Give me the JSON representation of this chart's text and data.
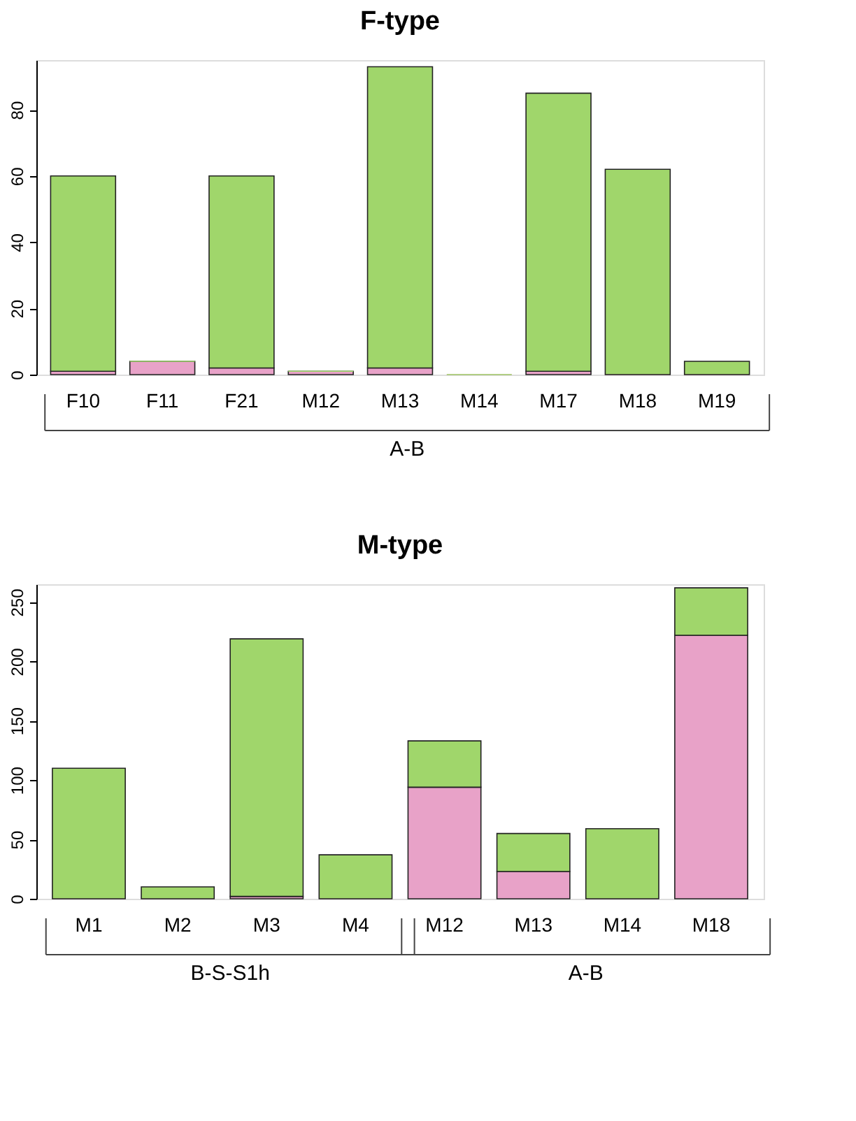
{
  "chart_data": [
    {
      "type": "bar",
      "title": "F-type",
      "stacked": true,
      "categories": [
        "F10",
        "F11",
        "F21",
        "M12",
        "M13",
        "M14",
        "M17",
        "M18",
        "M19"
      ],
      "series": [
        {
          "color": "#e8a2c8",
          "values": [
            1,
            4,
            2,
            1,
            2,
            0,
            1,
            0,
            0
          ]
        },
        {
          "color": "#a0d66b",
          "values": [
            59,
            0,
            58,
            0,
            91,
            0,
            84,
            62,
            4
          ]
        }
      ],
      "ylim": [
        0,
        95
      ],
      "yticks": [
        0,
        20,
        40,
        60,
        80
      ],
      "grid": false,
      "legend": false,
      "annotations": [
        "A-B"
      ]
    },
    {
      "type": "bar",
      "title": "M-type",
      "stacked": true,
      "categories": [
        "M1",
        "M2",
        "M3",
        "M4",
        "M12",
        "M13",
        "M14",
        "M18"
      ],
      "series": [
        {
          "color": "#e8a2c8",
          "values": [
            0,
            0,
            2,
            0,
            94,
            23,
            0,
            222
          ]
        },
        {
          "color": "#a0d66b",
          "values": [
            110,
            10,
            217,
            37,
            39,
            32,
            59,
            40
          ]
        }
      ],
      "ylim": [
        0,
        265
      ],
      "yticks": [
        0,
        50,
        100,
        150,
        200,
        250
      ],
      "grid": false,
      "legend": false,
      "annotations": [
        "B-S-S1h",
        "A-B"
      ]
    }
  ]
}
